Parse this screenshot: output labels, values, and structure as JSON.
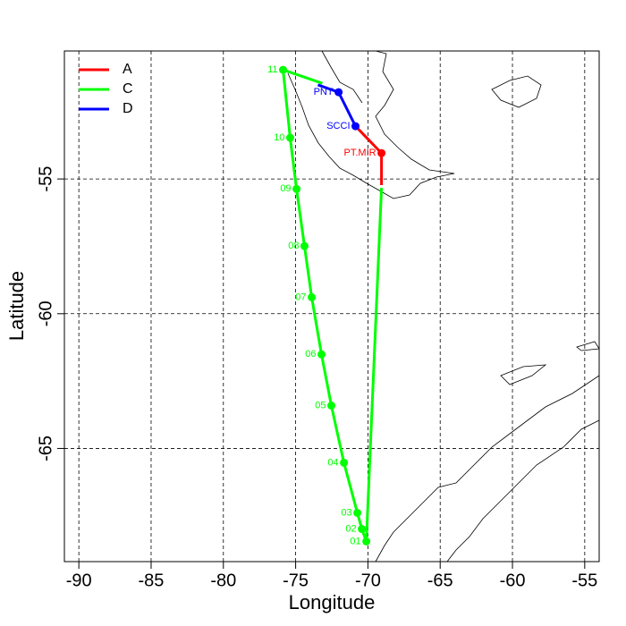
{
  "chart_data": {
    "type": "line",
    "xlabel": "Longitude",
    "ylabel": "Latitude",
    "xlim": [
      -91,
      -54
    ],
    "ylim": [
      -69.2,
      -50.25
    ],
    "xticks": [
      -90,
      -85,
      -80,
      -75,
      -70,
      -65,
      -60,
      -55
    ],
    "yticks": [
      -55,
      -60,
      -65
    ],
    "grid": true,
    "legend": "top-left",
    "series": [
      {
        "name": "A",
        "color": "#ff0000",
        "x": [
          -69.06,
          -69.06,
          -70.86
        ],
        "values": [
          -55.23,
          -54.04,
          -53.04
        ],
        "point_labels": [
          null,
          "PT.MIR",
          null
        ]
      },
      {
        "name": "C",
        "color": "#00ff00",
        "x": [
          -69.06,
          -70.11,
          -70.42,
          -70.73,
          -71.66,
          -72.53,
          -73.21,
          -73.89,
          -74.39,
          -74.94,
          -75.38,
          -75.87,
          -73.15
        ],
        "values": [
          -55.33,
          -68.45,
          -67.99,
          -67.39,
          -65.53,
          -63.41,
          -61.51,
          -59.39,
          -57.49,
          -55.37,
          -53.47,
          -50.95,
          -51.45
        ],
        "point_labels": [
          null,
          "01",
          "02",
          "03",
          "04",
          "05",
          "06",
          "07",
          "08",
          "09",
          "10",
          "11",
          null
        ]
      },
      {
        "name": "D",
        "color": "#0000ff",
        "x": [
          -70.86,
          -72.03,
          -73.46
        ],
        "values": [
          -53.04,
          -51.78,
          -51.51
        ],
        "point_labels": [
          "SCCI",
          "PNT",
          null
        ]
      }
    ]
  }
}
